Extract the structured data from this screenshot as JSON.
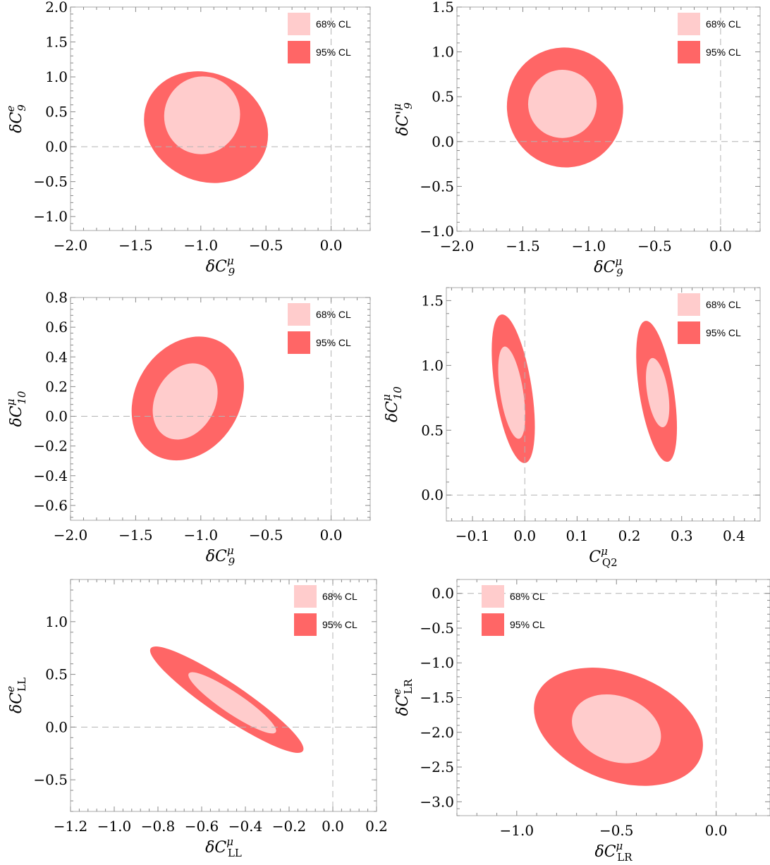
{
  "colors": {
    "cl68": "#ffcccc",
    "cl95": "#ff6666",
    "frame": "#aaaaaa",
    "zero_line": "#b4b4b4"
  },
  "chart_data": [
    {
      "type": "contour",
      "xlabel": {
        "prefix": "δ",
        "var": "C",
        "sub": "9",
        "sup": "μ"
      },
      "ylabel": {
        "prefix": "δ",
        "var": "C",
        "sub": "9",
        "sup": "e"
      },
      "xlim": [
        -2.0,
        0.3
      ],
      "ylim": [
        -1.2,
        2.0
      ],
      "xticks": [
        -2.0,
        -1.5,
        -1.0,
        -0.5,
        0.0
      ],
      "yticks": [
        -1.0,
        -0.5,
        0.0,
        0.5,
        1.0,
        1.5,
        2.0
      ],
      "xtick_labels": [
        "−2.0",
        "−1.5",
        "−1.0",
        "−0.5",
        "0.0"
      ],
      "ytick_labels": [
        "−1.0",
        "−0.5",
        "0.0",
        "0.5",
        "1.0",
        "1.5",
        "2.0"
      ],
      "legend": [
        "68% CL",
        "95% CL"
      ],
      "legend_position": "top-right",
      "regions": [
        {
          "level": "95% CL",
          "center": [
            -0.96,
            0.28
          ],
          "rx": 0.49,
          "ry": 0.77,
          "angle": 26
        },
        {
          "level": "68% CL",
          "center": [
            -0.99,
            0.45
          ],
          "rx": 0.29,
          "ry": 0.56,
          "angle": 22
        }
      ]
    },
    {
      "type": "contour",
      "xlabel": {
        "prefix": "δ",
        "var": "C",
        "sub": "9",
        "sup": "μ"
      },
      "ylabel": {
        "prefix": "δ",
        "var": "C'",
        "sub": "9",
        "sup": "μ"
      },
      "xlim": [
        -2.0,
        0.3
      ],
      "ylim": [
        -1.0,
        1.5
      ],
      "xticks": [
        -2.0,
        -1.5,
        -1.0,
        -0.5,
        0.0
      ],
      "yticks": [
        -1.0,
        -0.5,
        0.0,
        0.5,
        1.0,
        1.5
      ],
      "xtick_labels": [
        "−2.0",
        "−1.5",
        "−1.0",
        "−0.5",
        "0.0"
      ],
      "ytick_labels": [
        "−1.0",
        "−0.5",
        "0.0",
        "0.5",
        "1.0",
        "1.5"
      ],
      "legend": [
        "68% CL",
        "95% CL"
      ],
      "legend_position": "top-right",
      "regions": [
        {
          "level": "95% CL",
          "center": [
            -1.18,
            0.38
          ],
          "rx": 0.44,
          "ry": 0.67,
          "angle": -14
        },
        {
          "level": "68% CL",
          "center": [
            -1.2,
            0.42
          ],
          "rx": 0.26,
          "ry": 0.38,
          "angle": -12
        }
      ]
    },
    {
      "type": "contour",
      "xlabel": {
        "prefix": "δ",
        "var": "C",
        "sub": "9",
        "sup": "μ"
      },
      "ylabel": {
        "prefix": "δ",
        "var": "C",
        "sub": "10",
        "sup": "μ"
      },
      "xlim": [
        -2.0,
        0.3
      ],
      "ylim": [
        -0.7,
        0.8
      ],
      "xticks": [
        -2.0,
        -1.5,
        -1.0,
        -0.5,
        0.0
      ],
      "yticks": [
        -0.6,
        -0.4,
        -0.2,
        0.0,
        0.2,
        0.4,
        0.6,
        0.8
      ],
      "xtick_labels": [
        "−2.0",
        "−1.5",
        "−1.0",
        "−0.5",
        "0.0"
      ],
      "ytick_labels": [
        "−0.6",
        "−0.4",
        "−0.2",
        "0.0",
        "0.2",
        "0.4",
        "0.6",
        "0.8"
      ],
      "legend": [
        "68% CL",
        "95% CL"
      ],
      "legend_position": "top-right",
      "regions": [
        {
          "level": "95% CL",
          "center": [
            -1.1,
            0.12
          ],
          "rx": 0.4,
          "ry": 0.44,
          "angle": 32
        },
        {
          "level": "68% CL",
          "center": [
            -1.12,
            0.1
          ],
          "rx": 0.23,
          "ry": 0.27,
          "angle": 28
        }
      ]
    },
    {
      "type": "contour",
      "xlabel": {
        "prefix": "",
        "var": "C",
        "sub": "Q2",
        "sup": "μ"
      },
      "ylabel": {
        "prefix": "δ",
        "var": "C",
        "sub": "10",
        "sup": "μ"
      },
      "xlim": [
        -0.15,
        0.45
      ],
      "ylim": [
        -0.2,
        1.6
      ],
      "xticks": [
        -0.1,
        0.0,
        0.1,
        0.2,
        0.3,
        0.4
      ],
      "yticks": [
        0.0,
        0.5,
        1.0,
        1.5
      ],
      "xtick_labels": [
        "−0.1",
        "0.0",
        "0.1",
        "0.2",
        "0.3",
        "0.4"
      ],
      "ytick_labels": [
        "0.0",
        "0.5",
        "1.0",
        "1.5"
      ],
      "legend": [
        "68% CL",
        "95% CL"
      ],
      "legend_position": "top-right",
      "regions": [
        {
          "level": "95% CL",
          "center": [
            -0.022,
            0.82
          ],
          "rx": 0.035,
          "ry": 0.58,
          "angle": -9
        },
        {
          "level": "68% CL",
          "center": [
            -0.025,
            0.79
          ],
          "rx": 0.022,
          "ry": 0.36,
          "angle": -9
        },
        {
          "level": "95% CL",
          "center": [
            0.252,
            0.8
          ],
          "rx": 0.033,
          "ry": 0.55,
          "angle": -9
        },
        {
          "level": "68% CL",
          "center": [
            0.254,
            0.79
          ],
          "rx": 0.02,
          "ry": 0.27,
          "angle": -9
        }
      ]
    },
    {
      "type": "contour",
      "xlabel": {
        "prefix": "δ",
        "var": "C",
        "sub": "LL",
        "sup": "μ"
      },
      "ylabel": {
        "prefix": "δ",
        "var": "C",
        "sub": "LL",
        "sup": "e"
      },
      "xlim": [
        -1.2,
        0.2
      ],
      "ylim": [
        -0.8,
        1.4
      ],
      "xticks": [
        -1.2,
        -1.0,
        -0.8,
        -0.6,
        -0.4,
        -0.2,
        0.0,
        0.2
      ],
      "yticks": [
        -0.5,
        0.0,
        0.5,
        1.0
      ],
      "xtick_labels": [
        "−1.2",
        "−1.0",
        "−0.8",
        "−0.6",
        "−0.4",
        "−0.2",
        "0.0",
        "0.2"
      ],
      "ytick_labels": [
        "−0.5",
        "0.0",
        "0.5",
        "1.0"
      ],
      "legend": [
        "68% CL",
        "95% CL"
      ],
      "legend_position": "top-right",
      "regions": [
        {
          "level": "95% CL",
          "center": [
            -0.485,
            0.26
          ],
          "rx": 0.42,
          "ry": 0.16,
          "angle": 34
        },
        {
          "level": "68% CL",
          "center": [
            -0.46,
            0.23
          ],
          "rx": 0.24,
          "ry": 0.1,
          "angle": 34
        }
      ]
    },
    {
      "type": "contour",
      "xlabel": {
        "prefix": "δ",
        "var": "C",
        "sub": "LR",
        "sup": "μ"
      },
      "ylabel": {
        "prefix": "δ",
        "var": "C",
        "sub": "LR",
        "sup": "e"
      },
      "xlim": [
        -1.3,
        0.27
      ],
      "ylim": [
        -3.2,
        0.2
      ],
      "xticks": [
        -1.0,
        -0.5,
        0.0
      ],
      "yticks": [
        -3.0,
        -2.5,
        -2.0,
        -1.5,
        -1.0,
        -0.5,
        0.0
      ],
      "xtick_labels": [
        "−1.0",
        "−0.5",
        "0.0"
      ],
      "ytick_labels": [
        "−3.0",
        "−2.5",
        "−2.0",
        "−1.5",
        "−1.0",
        "−0.5",
        "0.0"
      ],
      "legend": [
        "68% CL",
        "95% CL"
      ],
      "legend_position": "top-left",
      "regions": [
        {
          "level": "95% CL",
          "center": [
            -0.49,
            -1.92
          ],
          "rx": 0.44,
          "ry": 0.78,
          "angle": 20
        },
        {
          "level": "68% CL",
          "center": [
            -0.5,
            -1.95
          ],
          "rx": 0.23,
          "ry": 0.47,
          "angle": 20
        }
      ]
    }
  ]
}
